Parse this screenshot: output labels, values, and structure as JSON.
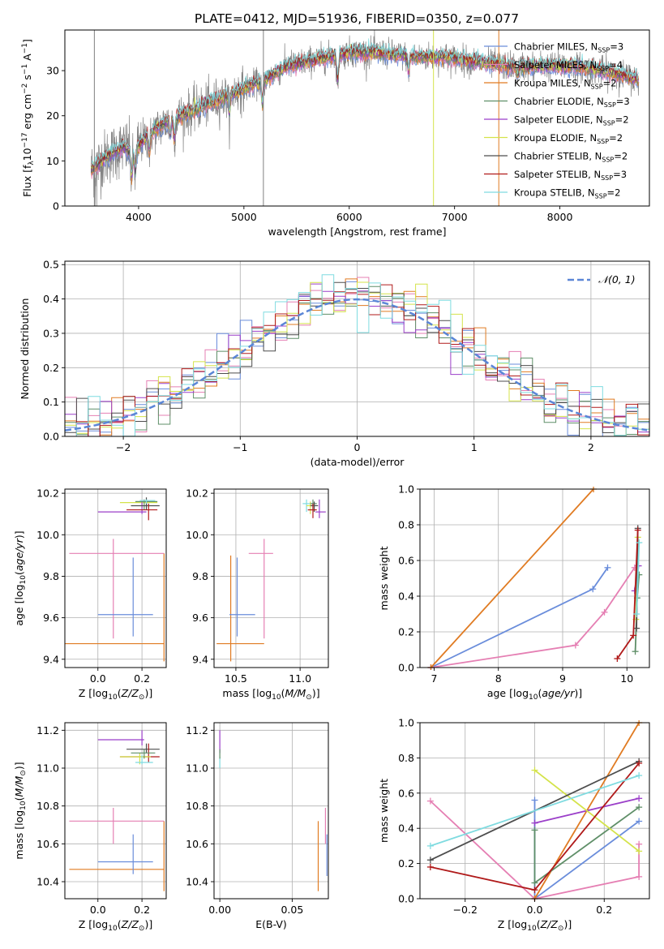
{
  "figure": {
    "title": "PLATE=0412, MJD=51936, FIBERID=0350, z=0.077"
  },
  "colors": {
    "Chabrier MILES": "#6a8ddb",
    "Salpeter MILES": "#e57fb3",
    "Kroupa MILES": "#e07b22",
    "Chabrier ELODIE": "#5f8f68",
    "Salpeter ELODIE": "#9b3fc9",
    "Kroupa ELODIE": "#d4e34a",
    "Chabrier STELIB": "#4d4d4d",
    "Salpeter STELIB": "#b01a1a",
    "Kroupa STELIB": "#7fdbe0",
    "data": "#808080",
    "normal": "#5b86d6"
  },
  "legend_labels": {
    "Chabrier MILES": "Chabrier MILES, N",
    "Salpeter MILES": "Salpeter MILES, N",
    "Kroupa MILES": "Kroupa MILES, N",
    "Chabrier ELODIE": "Chabrier ELODIE, N",
    "Salpeter ELODIE": "Salpeter ELODIE, N",
    "Kroupa ELODIE": "Kroupa ELODIE, N",
    "Chabrier STELIB": "Chabrier STELIB, N",
    "Salpeter STELIB": "Salpeter STELIB, N",
    "Kroupa STELIB": "Kroupa STELIB, N"
  },
  "legend_counts": {
    "Chabrier MILES": "=3",
    "Salpeter MILES": "=4",
    "Kroupa MILES": "=2",
    "Chabrier ELODIE": "=3",
    "Salpeter ELODIE": "=2",
    "Kroupa ELODIE": "=2",
    "Chabrier STELIB": "=2",
    "Salpeter STELIB": "=3",
    "Kroupa STELIB": "=2"
  },
  "legend_sub": "SSP",
  "chart_data": [
    {
      "id": "spectrum",
      "type": "line",
      "xlabel": "wavelength [Angstrom, rest frame]",
      "ylabel": "Flux [f",
      "ylabel_parts": [
        "Flux [f",
        "λ",
        "10",
        "−17",
        " erg cm",
        "−2",
        " s",
        "−1",
        " A",
        "−1",
        "]"
      ],
      "xlim": [
        3300,
        8850
      ],
      "ylim": [
        0,
        39
      ],
      "xticks": [
        4000,
        5000,
        6000,
        7000,
        8000
      ],
      "yticks": [
        0,
        10,
        20,
        30
      ],
      "xticklabels": [
        "4000",
        "5000",
        "6000",
        "7000",
        "8000"
      ],
      "yticklabels": [
        "0",
        "10",
        "20",
        "30"
      ],
      "grid": false,
      "legend": "right",
      "continuum_x": [
        3550,
        3700,
        3850,
        3950,
        4100,
        4300,
        4500,
        4800,
        5000,
        5200,
        5400,
        5600,
        5800,
        6000,
        6300,
        6600,
        6900,
        7200,
        7500,
        7800,
        8100,
        8400,
        8750
      ],
      "continuum_y": [
        8,
        11,
        13,
        12,
        16,
        19,
        21,
        24,
        26,
        28,
        31,
        32,
        33,
        34,
        34,
        33,
        33,
        32,
        31,
        31,
        31,
        30,
        28
      ]
    },
    {
      "id": "residuals",
      "type": "histogram",
      "xlabel": "(data-model)/error",
      "ylabel": "Normed distribution",
      "xlim": [
        -2.5,
        2.5
      ],
      "ylim": [
        0,
        0.51
      ],
      "xticks": [
        -2,
        -1,
        0,
        1,
        2
      ],
      "xticklabels": [
        "−2",
        "−1",
        "0",
        "1",
        "2"
      ],
      "yticks": [
        0,
        0.1,
        0.2,
        0.3,
        0.4,
        0.5
      ],
      "yticklabels": [
        "0.0",
        "0.1",
        "0.2",
        "0.3",
        "0.4",
        "0.5"
      ],
      "grid": true,
      "legend": "top-right",
      "normal_label": "𝒩(0, 1)",
      "bin_width": 0.1
    },
    {
      "id": "age-vs-Z",
      "type": "errorbar",
      "xlabel": "Z [log",
      "xlabel_parts": [
        "Z [log",
        "10",
        "(",
        "Z/Z",
        "⊙",
        ")]"
      ],
      "ylabel": "age  [log",
      "ylabel_parts": [
        "age  [log",
        "10",
        "(",
        "age/yr",
        ")]"
      ],
      "xlim": [
        -0.15,
        0.31
      ],
      "ylim": [
        9.36,
        10.22
      ],
      "xticks": [
        0.0,
        0.2
      ],
      "xticklabels": [
        "0.0",
        "0.2"
      ],
      "yticks": [
        9.4,
        9.6,
        9.8,
        10.0,
        10.2
      ],
      "yticklabels": [
        "9.4",
        "9.6",
        "9.8",
        "10.0",
        "10.2"
      ],
      "grid": true,
      "points": [
        {
          "model": "Kroupa MILES",
          "x": 0.3,
          "xlo": -0.15,
          "xhi": 0.3,
          "y": 9.475,
          "ylo": 9.39,
          "yhi": 9.91
        },
        {
          "model": "Salpeter MILES",
          "x": 0.07,
          "xlo": -0.13,
          "xhi": 0.3,
          "y": 9.91,
          "ylo": 9.5,
          "yhi": 9.98
        },
        {
          "model": "Chabrier MILES",
          "x": 0.16,
          "xlo": 0.0,
          "xhi": 0.25,
          "y": 9.615,
          "ylo": 9.51,
          "yhi": 9.89
        },
        {
          "model": "Kroupa ELODIE",
          "x": 0.2,
          "xlo": 0.1,
          "xhi": 0.27,
          "y": 10.155,
          "ylo": 10.13,
          "yhi": 10.16
        },
        {
          "model": "Salpeter ELODIE",
          "x": 0.2,
          "xlo": 0.0,
          "xhi": 0.22,
          "y": 10.11,
          "ylo": 10.1,
          "yhi": 10.16
        },
        {
          "model": "Chabrier ELODIE",
          "x": 0.21,
          "xlo": 0.17,
          "xhi": 0.27,
          "y": 10.16,
          "ylo": 10.12,
          "yhi": 10.17
        },
        {
          "model": "Chabrier STELIB",
          "x": 0.22,
          "xlo": 0.15,
          "xhi": 0.28,
          "y": 10.14,
          "ylo": 10.12,
          "yhi": 10.18
        },
        {
          "model": "Salpeter STELIB",
          "x": 0.23,
          "xlo": 0.13,
          "xhi": 0.27,
          "y": 10.12,
          "ylo": 10.07,
          "yhi": 10.15
        },
        {
          "model": "Kroupa STELIB",
          "x": 0.22,
          "xlo": 0.19,
          "xhi": 0.26,
          "y": 10.165,
          "ylo": 10.15,
          "yhi": 10.17
        }
      ]
    },
    {
      "id": "age-vs-mass",
      "type": "errorbar",
      "xlabel": "mass [log",
      "xlabel_parts": [
        "mass [log",
        "10",
        "(",
        "M/M",
        "⊙",
        ")]"
      ],
      "ylabel": "",
      "xlim": [
        10.33,
        11.22
      ],
      "ylim": [
        9.36,
        10.22
      ],
      "xticks": [
        10.5,
        11.0
      ],
      "xticklabels": [
        "10.5",
        "11.0"
      ],
      "yticks": [
        9.4,
        9.6,
        9.8,
        10.0,
        10.2
      ],
      "yticklabels": [
        "9.4",
        "9.6",
        "9.8",
        "10.0",
        "10.2"
      ],
      "grid": true,
      "points": [
        {
          "model": "Kroupa MILES",
          "x": 10.46,
          "xlo": 10.35,
          "xhi": 10.72,
          "y": 9.475,
          "ylo": 9.39,
          "yhi": 9.9
        },
        {
          "model": "Chabrier MILES",
          "x": 10.51,
          "xlo": 10.45,
          "xhi": 10.65,
          "y": 9.615,
          "ylo": 9.51,
          "yhi": 9.89
        },
        {
          "model": "Salpeter MILES",
          "x": 10.72,
          "xlo": 10.6,
          "xhi": 10.79,
          "y": 9.91,
          "ylo": 9.5,
          "yhi": 9.98
        },
        {
          "model": "Kroupa STELIB",
          "x": 11.05,
          "xlo": 11.02,
          "xhi": 11.1,
          "y": 10.15,
          "ylo": 10.11,
          "yhi": 10.17
        },
        {
          "model": "Kroupa ELODIE",
          "x": 11.08,
          "xlo": 11.05,
          "xhi": 11.12,
          "y": 10.14,
          "ylo": 10.1,
          "yhi": 10.16
        },
        {
          "model": "Chabrier ELODIE",
          "x": 11.1,
          "xlo": 11.08,
          "xhi": 11.13,
          "y": 10.15,
          "ylo": 10.12,
          "yhi": 10.17
        },
        {
          "model": "Chabrier STELIB",
          "x": 11.11,
          "xlo": 11.08,
          "xhi": 11.14,
          "y": 10.14,
          "ylo": 10.11,
          "yhi": 10.16
        },
        {
          "model": "Salpeter STELIB",
          "x": 11.1,
          "xlo": 11.06,
          "xhi": 11.13,
          "y": 10.12,
          "ylo": 10.08,
          "yhi": 10.15
        },
        {
          "model": "Salpeter ELODIE",
          "x": 11.15,
          "xlo": 11.12,
          "xhi": 11.2,
          "y": 10.11,
          "ylo": 10.08,
          "yhi": 10.17
        }
      ]
    },
    {
      "id": "massweight-vs-age",
      "type": "line",
      "xlabel": "age  [log",
      "xlabel_parts": [
        "age  [log",
        "10",
        "(",
        "age/yr",
        ")]"
      ],
      "ylabel": "mass weight",
      "xlim": [
        6.78,
        10.35
      ],
      "ylim": [
        0,
        1
      ],
      "xticks": [
        7,
        8,
        9,
        10
      ],
      "xticklabels": [
        "7",
        "8",
        "9",
        "10"
      ],
      "yticks": [
        0,
        0.2,
        0.4,
        0.6,
        0.8,
        1.0
      ],
      "yticklabels": [
        "0.0",
        "0.2",
        "0.4",
        "0.6",
        "0.8",
        "1.0"
      ],
      "grid": true,
      "series": [
        {
          "model": "Chabrier MILES",
          "x": [
            6.95,
            9.47,
            9.7
          ],
          "y": [
            0.0,
            0.44,
            0.56
          ]
        },
        {
          "model": "Salpeter MILES",
          "x": [
            6.95,
            9.2,
            9.65,
            10.12
          ],
          "y": [
            0.0,
            0.125,
            0.31,
            0.56
          ]
        },
        {
          "model": "Kroupa MILES",
          "x": [
            6.95,
            9.48
          ],
          "y": [
            0.0,
            1.0
          ]
        },
        {
          "model": "Chabrier ELODIE",
          "x": [
            10.13,
            10.16,
            10.19
          ],
          "y": [
            0.09,
            0.39,
            0.52
          ]
        },
        {
          "model": "Salpeter ELODIE",
          "x": [
            10.12,
            10.18
          ],
          "y": [
            0.43,
            0.57
          ]
        },
        {
          "model": "Kroupa ELODIE",
          "x": [
            10.14,
            10.17
          ],
          "y": [
            0.27,
            0.73
          ]
        },
        {
          "model": "Chabrier STELIB",
          "x": [
            10.15,
            10.17
          ],
          "y": [
            0.22,
            0.78
          ]
        },
        {
          "model": "Salpeter STELIB",
          "x": [
            9.85,
            10.1,
            10.17
          ],
          "y": [
            0.05,
            0.18,
            0.77
          ]
        },
        {
          "model": "Kroupa STELIB",
          "x": [
            10.15,
            10.19
          ],
          "y": [
            0.3,
            0.7
          ]
        }
      ]
    },
    {
      "id": "mass-vs-Z",
      "type": "errorbar",
      "xlabel": "Z [log",
      "xlabel_parts": [
        "Z [log",
        "10",
        "(",
        "Z/Z",
        "⊙",
        ")]"
      ],
      "ylabel": "mass [log",
      "ylabel_parts": [
        "mass [log",
        "10",
        "(",
        "M/M",
        "⊙",
        ")]"
      ],
      "xlim": [
        -0.15,
        0.31
      ],
      "ylim": [
        10.31,
        11.24
      ],
      "xticks": [
        0.0,
        0.2
      ],
      "xticklabels": [
        "0.0",
        "0.2"
      ],
      "yticks": [
        10.4,
        10.6,
        10.8,
        11.0,
        11.2
      ],
      "yticklabels": [
        "10.4",
        "10.6",
        "10.8",
        "11.0",
        "11.2"
      ],
      "grid": true,
      "points": [
        {
          "model": "Kroupa MILES",
          "x": 0.3,
          "xlo": -0.13,
          "xhi": 0.3,
          "y": 10.465,
          "ylo": 10.35,
          "yhi": 10.72
        },
        {
          "model": "Salpeter MILES",
          "x": 0.07,
          "xlo": -0.13,
          "xhi": 0.3,
          "y": 10.72,
          "ylo": 10.6,
          "yhi": 10.79
        },
        {
          "model": "Chabrier MILES",
          "x": 0.16,
          "xlo": 0.0,
          "xhi": 0.25,
          "y": 10.505,
          "ylo": 10.44,
          "yhi": 10.65
        },
        {
          "model": "Salpeter ELODIE",
          "x": 0.2,
          "xlo": 0.0,
          "xhi": 0.21,
          "y": 11.15,
          "ylo": 11.12,
          "yhi": 11.2
        },
        {
          "model": "Chabrier STELIB",
          "x": 0.22,
          "xlo": 0.13,
          "xhi": 0.28,
          "y": 11.1,
          "ylo": 11.08,
          "yhi": 11.13
        },
        {
          "model": "Salpeter STELIB",
          "x": 0.23,
          "xlo": 0.1,
          "xhi": 0.28,
          "y": 11.06,
          "ylo": 11.03,
          "yhi": 11.13
        },
        {
          "model": "Kroupa ELODIE",
          "x": 0.19,
          "xlo": 0.1,
          "xhi": 0.24,
          "y": 11.06,
          "ylo": 11.02,
          "yhi": 11.08
        },
        {
          "model": "Chabrier ELODIE",
          "x": 0.21,
          "xlo": 0.15,
          "xhi": 0.26,
          "y": 11.08,
          "ylo": 11.05,
          "yhi": 11.1
        },
        {
          "model": "Kroupa STELIB",
          "x": 0.2,
          "xlo": 0.17,
          "xhi": 0.25,
          "y": 11.03,
          "ylo": 11.02,
          "yhi": 11.07
        }
      ]
    },
    {
      "id": "mass-vs-EBV",
      "type": "errorbar",
      "xlabel": "E(B-V)",
      "ylabel": "",
      "xlim": [
        -0.004,
        0.075
      ],
      "ylim": [
        10.31,
        11.24
      ],
      "xticks": [
        0.0,
        0.05
      ],
      "xticklabels": [
        "0.00",
        "0.05"
      ],
      "yticks": [
        10.4,
        10.6,
        10.8,
        11.0,
        11.2
      ],
      "yticklabels": [
        "10.4",
        "10.6",
        "10.8",
        "11.0",
        "11.2"
      ],
      "grid": true,
      "points": [
        {
          "model": "Kroupa MILES",
          "x": 0.068,
          "xlo": 0.068,
          "xhi": 0.068,
          "y": 10.465,
          "ylo": 10.35,
          "yhi": 10.72
        },
        {
          "model": "Salpeter MILES",
          "x": 0.073,
          "xlo": 0.073,
          "xhi": 0.073,
          "y": 10.72,
          "ylo": 10.6,
          "yhi": 10.79
        },
        {
          "model": "Chabrier MILES",
          "x": 0.074,
          "xlo": 0.074,
          "xhi": 0.074,
          "y": 10.505,
          "ylo": 10.43,
          "yhi": 10.65
        },
        {
          "model": "Salpeter ELODIE",
          "x": 0.0,
          "xlo": 0.0,
          "xhi": 0.0,
          "y": 11.15,
          "ylo": 11.08,
          "yhi": 11.2
        },
        {
          "model": "Kroupa STELIB",
          "x": 0.0,
          "xlo": 0.0,
          "xhi": 0.0,
          "y": 11.03,
          "ylo": 11.0,
          "yhi": 11.06
        },
        {
          "model": "Chabrier ELODIE",
          "x": 0.0,
          "xlo": 0.0,
          "xhi": 0.0,
          "y": 11.08,
          "ylo": 11.05,
          "yhi": 11.1
        }
      ]
    },
    {
      "id": "massweight-vs-Z",
      "type": "line",
      "xlabel": "Z [log",
      "xlabel_parts": [
        "Z [log",
        "10",
        "(",
        "Z/Z",
        "⊙",
        ")]"
      ],
      "ylabel": "mass weight",
      "xlim": [
        -0.33,
        0.33
      ],
      "ylim": [
        0,
        1
      ],
      "xticks": [
        -0.2,
        0.0,
        0.2
      ],
      "xticklabels": [
        "−0.2",
        "0.0",
        "0.2"
      ],
      "yticks": [
        0,
        0.2,
        0.4,
        0.6,
        0.8,
        1.0
      ],
      "yticklabels": [
        "0.0",
        "0.2",
        "0.4",
        "0.6",
        "0.8",
        "1.0"
      ],
      "grid": true,
      "series": [
        {
          "model": "Chabrier MILES",
          "x": [
            0.0,
            0.0,
            0.3
          ],
          "y": [
            0.56,
            0.0,
            0.44
          ]
        },
        {
          "model": "Salpeter MILES",
          "x": [
            -0.3,
            0.0,
            0.3,
            0.3
          ],
          "y": [
            0.555,
            0.0,
            0.125,
            0.31
          ]
        },
        {
          "model": "Kroupa MILES",
          "x": [
            0.0,
            0.3
          ],
          "y": [
            0.0,
            1.0
          ]
        },
        {
          "model": "Chabrier ELODIE",
          "x": [
            0.0,
            0.0,
            0.3
          ],
          "y": [
            0.39,
            0.09,
            0.52
          ]
        },
        {
          "model": "Salpeter ELODIE",
          "x": [
            0.0,
            0.3
          ],
          "y": [
            0.43,
            0.57
          ]
        },
        {
          "model": "Kroupa ELODIE",
          "x": [
            0.0,
            0.3
          ],
          "y": [
            0.73,
            0.27
          ]
        },
        {
          "model": "Chabrier STELIB",
          "x": [
            -0.3,
            0.3
          ],
          "y": [
            0.22,
            0.78
          ]
        },
        {
          "model": "Salpeter STELIB",
          "x": [
            -0.3,
            0.0,
            0.3
          ],
          "y": [
            0.18,
            0.05,
            0.77
          ]
        },
        {
          "model": "Kroupa STELIB",
          "x": [
            -0.3,
            0.3
          ],
          "y": [
            0.3,
            0.7
          ]
        }
      ]
    }
  ]
}
